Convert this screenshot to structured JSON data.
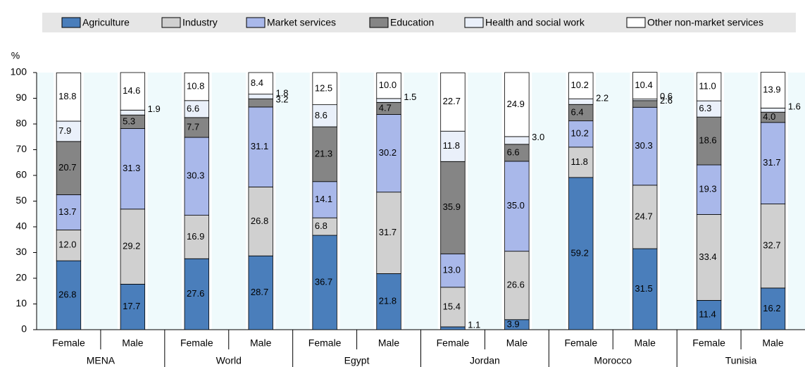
{
  "chart_data": {
    "type": "stacked-bar",
    "ylabel": "%",
    "categories": [
      "Female",
      "Male",
      "Female",
      "Male",
      "Female",
      "Male",
      "Female",
      "Male",
      "Female",
      "Male",
      "Female",
      "Male"
    ],
    "groups": [
      "MENA",
      "World",
      "Egypt",
      "Jordan",
      "Morocco",
      "Tunisia"
    ],
    "ylim": [
      0,
      100
    ],
    "yticks": [
      0,
      10,
      20,
      30,
      40,
      50,
      60,
      70,
      80,
      90,
      100
    ],
    "legend": "top",
    "series": [
      {
        "name": "Agriculture",
        "color": "#4a7ebb",
        "values": [
          26.8,
          17.7,
          27.6,
          28.7,
          36.7,
          21.8,
          1.1,
          3.9,
          59.2,
          31.5,
          11.4,
          16.2
        ],
        "value_labels": [
          "26.8",
          "17.7",
          "27.6",
          "28.7",
          "36.7",
          "21.8",
          "1.1",
          "3.9",
          "59.2",
          "31.5",
          "11.4",
          "16.2"
        ]
      },
      {
        "name": "Industry",
        "color": "#d0d0d0",
        "values": [
          12.0,
          29.2,
          16.9,
          26.8,
          6.8,
          31.7,
          15.4,
          26.6,
          11.8,
          24.7,
          33.4,
          32.7
        ],
        "value_labels": [
          "12.0",
          "29.2",
          "16.9",
          "26.8",
          "6.8",
          "31.7",
          "15.4",
          "26.6",
          "11.8",
          "24.7",
          "33.4",
          "32.7"
        ]
      },
      {
        "name": "Market services",
        "color": "#a9b8ea",
        "values": [
          13.7,
          31.3,
          30.3,
          31.1,
          14.1,
          30.2,
          13.0,
          35.0,
          10.2,
          30.3,
          19.3,
          31.7
        ],
        "value_labels": [
          "13.7",
          "31.3",
          "30.3",
          "31.1",
          "14.1",
          "30.2",
          "13.0",
          "35.0",
          "10.2",
          "30.3",
          "19.3",
          "31.7"
        ]
      },
      {
        "name": "Education",
        "color": "#858585",
        "values": [
          20.7,
          5.3,
          7.7,
          3.2,
          21.3,
          4.7,
          35.9,
          6.6,
          6.4,
          2.6,
          18.6,
          4.0
        ],
        "value_labels": [
          "20.7",
          "5.3",
          "7.7",
          "3.2",
          "21.3",
          "4.7",
          "35.9",
          "6.6",
          "6.4",
          "2.6",
          "18.6",
          "4.0"
        ]
      },
      {
        "name": "Health and social work",
        "color": "#eaf0fa",
        "values": [
          7.9,
          1.9,
          6.6,
          1.8,
          8.6,
          1.5,
          11.8,
          3.0,
          2.2,
          0.6,
          6.3,
          1.6
        ],
        "value_labels": [
          "7.9",
          "1.9",
          "6.6",
          "1.8",
          "8.6",
          "1.5",
          "11.8",
          "3.0",
          "2.2",
          "0.6",
          "6.3",
          "1.6"
        ]
      },
      {
        "name": "Other non-market services",
        "color": "#ffffff",
        "values": [
          18.8,
          14.6,
          10.8,
          8.4,
          12.5,
          10.0,
          22.7,
          24.9,
          10.2,
          10.4,
          11.0,
          13.9
        ],
        "value_labels": [
          "18.8",
          "14.6",
          "10.8",
          "8.4",
          "12.5",
          "10.0",
          "22.7",
          "24.9",
          "10.2",
          "10.4",
          "11.0",
          "13.9"
        ]
      }
    ]
  }
}
